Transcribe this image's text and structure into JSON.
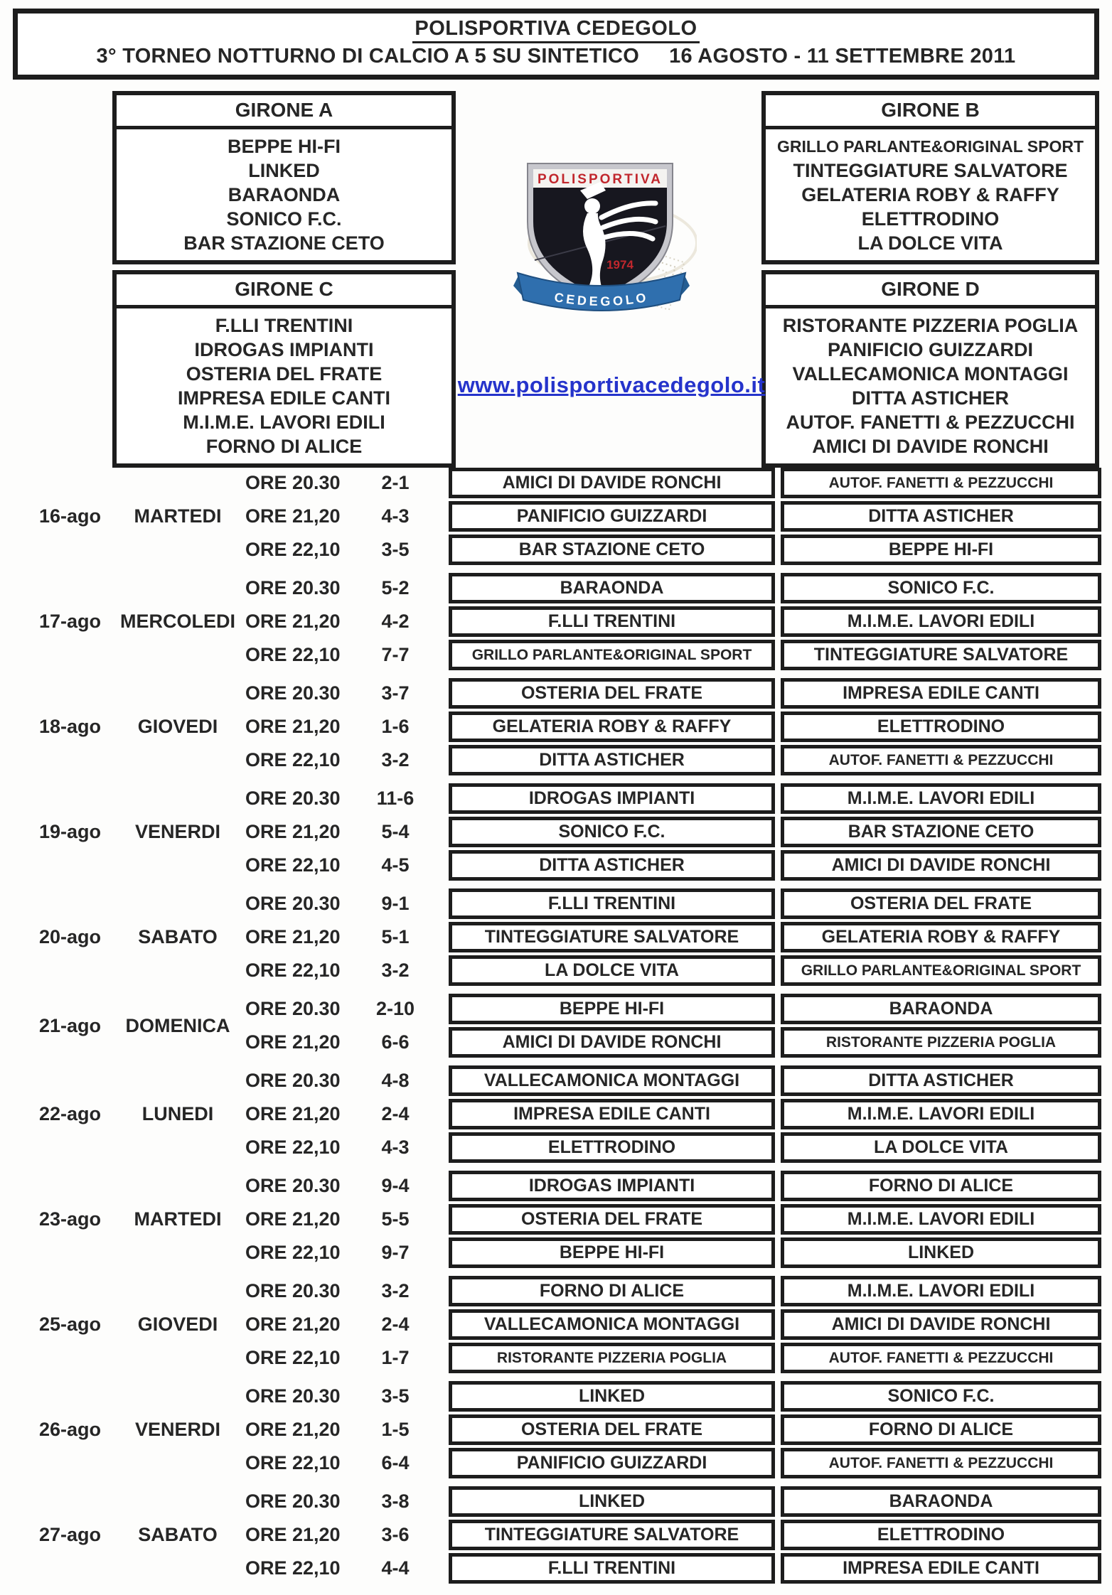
{
  "header": {
    "title": "POLISPORTIVA CEDEGOLO",
    "subtitle": "3° TORNEO NOTTURNO DI CALCIO A 5 SU SINTETICO",
    "dates": "16 AGOSTO - 11 SETTEMBRE 2011"
  },
  "logo": {
    "club": "POLISPORTIVA",
    "year": "1974",
    "town": "CEDEGOLO"
  },
  "website": "www.polisportivacedegolo.it",
  "groups": [
    {
      "name": "GIRONE A",
      "teams": [
        "BEPPE HI-FI",
        "LINKED",
        "BARAONDA",
        "SONICO F.C.",
        "BAR STAZIONE CETO"
      ]
    },
    {
      "name": "GIRONE B",
      "teams": [
        "GRILLO PARLANTE&ORIGINAL SPORT",
        "TINTEGGIATURE SALVATORE",
        "GELATERIA ROBY & RAFFY",
        "ELETTRODINO",
        "LA DOLCE VITA"
      ]
    },
    {
      "name": "GIRONE C",
      "teams": [
        "F.LLI TRENTINI",
        "IDROGAS IMPIANTI",
        "OSTERIA DEL FRATE",
        "IMPRESA EDILE CANTI",
        "M.I.M.E. LAVORI EDILI",
        "FORNO DI ALICE"
      ]
    },
    {
      "name": "GIRONE D",
      "teams": [
        "RISTORANTE PIZZERIA POGLIA",
        "PANIFICIO GUIZZARDI",
        "VALLECAMONICA MONTAGGI",
        "DITTA ASTICHER",
        "AUTOF. FANETTI & PEZZUCCHI",
        "AMICI DI DAVIDE RONCHI"
      ]
    }
  ],
  "schedule": [
    {
      "date": "16-ago",
      "day": "MARTEDI",
      "matches": [
        {
          "time": "ORE 20.30",
          "score": "2-1",
          "home": "AMICI DI DAVIDE RONCHI",
          "away": "AUTOF. FANETTI & PEZZUCCHI"
        },
        {
          "time": "ORE 21,20",
          "score": "4-3",
          "home": "PANIFICIO GUIZZARDI",
          "away": "DITTA ASTICHER"
        },
        {
          "time": "ORE 22,10",
          "score": "3-5",
          "home": "BAR STAZIONE CETO",
          "away": "BEPPE HI-FI"
        }
      ]
    },
    {
      "date": "17-ago",
      "day": "MERCOLEDI",
      "matches": [
        {
          "time": "ORE 20.30",
          "score": "5-2",
          "home": "BARAONDA",
          "away": "SONICO F.C."
        },
        {
          "time": "ORE 21,20",
          "score": "4-2",
          "home": "F.LLI TRENTINI",
          "away": "M.I.M.E. LAVORI EDILI"
        },
        {
          "time": "ORE 22,10",
          "score": "7-7",
          "home": "GRILLO PARLANTE&ORIGINAL SPORT",
          "away": "TINTEGGIATURE SALVATORE"
        }
      ]
    },
    {
      "date": "18-ago",
      "day": "GIOVEDI",
      "matches": [
        {
          "time": "ORE 20.30",
          "score": "3-7",
          "home": "OSTERIA DEL FRATE",
          "away": "IMPRESA EDILE CANTI"
        },
        {
          "time": "ORE 21,20",
          "score": "1-6",
          "home": "GELATERIA ROBY & RAFFY",
          "away": "ELETTRODINO"
        },
        {
          "time": "ORE 22,10",
          "score": "3-2",
          "home": "DITTA ASTICHER",
          "away": "AUTOF. FANETTI & PEZZUCCHI"
        }
      ]
    },
    {
      "date": "19-ago",
      "day": "VENERDI",
      "matches": [
        {
          "time": "ORE 20.30",
          "score": "11-6",
          "home": "IDROGAS IMPIANTI",
          "away": "M.I.M.E. LAVORI EDILI"
        },
        {
          "time": "ORE 21,20",
          "score": "5-4",
          "home": "SONICO F.C.",
          "away": "BAR STAZIONE CETO"
        },
        {
          "time": "ORE 22,10",
          "score": "4-5",
          "home": "DITTA ASTICHER",
          "away": "AMICI DI DAVIDE RONCHI"
        }
      ]
    },
    {
      "date": "20-ago",
      "day": "SABATO",
      "matches": [
        {
          "time": "ORE 20.30",
          "score": "9-1",
          "home": "F.LLI TRENTINI",
          "away": "OSTERIA DEL FRATE"
        },
        {
          "time": "ORE 21,20",
          "score": "5-1",
          "home": "TINTEGGIATURE SALVATORE",
          "away": "GELATERIA ROBY & RAFFY"
        },
        {
          "time": "ORE 22,10",
          "score": "3-2",
          "home": "LA DOLCE VITA",
          "away": "GRILLO PARLANTE&ORIGINAL SPORT"
        }
      ]
    },
    {
      "date": "21-ago",
      "day": "DOMENICA",
      "matches": [
        {
          "time": "ORE 20.30",
          "score": "2-10",
          "home": "BEPPE HI-FI",
          "away": "BARAONDA"
        },
        {
          "time": "ORE 21,20",
          "score": "6-6",
          "home": "AMICI DI DAVIDE RONCHI",
          "away": "RISTORANTE PIZZERIA POGLIA"
        }
      ]
    },
    {
      "date": "22-ago",
      "day": "LUNEDI",
      "matches": [
        {
          "time": "ORE 20.30",
          "score": "4-8",
          "home": "VALLECAMONICA MONTAGGI",
          "away": "DITTA ASTICHER"
        },
        {
          "time": "ORE 21,20",
          "score": "2-4",
          "home": "IMPRESA EDILE CANTI",
          "away": "M.I.M.E. LAVORI EDILI"
        },
        {
          "time": "ORE 22,10",
          "score": "4-3",
          "home": "ELETTRODINO",
          "away": "LA DOLCE VITA"
        }
      ]
    },
    {
      "date": "23-ago",
      "day": "MARTEDI",
      "matches": [
        {
          "time": "ORE 20.30",
          "score": "9-4",
          "home": "IDROGAS IMPIANTI",
          "away": "FORNO DI ALICE"
        },
        {
          "time": "ORE 21,20",
          "score": "5-5",
          "home": "OSTERIA DEL FRATE",
          "away": "M.I.M.E. LAVORI EDILI"
        },
        {
          "time": "ORE 22,10",
          "score": "9-7",
          "home": "BEPPE HI-FI",
          "away": "LINKED"
        }
      ]
    },
    {
      "date": "25-ago",
      "day": "GIOVEDI",
      "matches": [
        {
          "time": "ORE 20.30",
          "score": "3-2",
          "home": "FORNO DI ALICE",
          "away": "M.I.M.E. LAVORI EDILI"
        },
        {
          "time": "ORE 21,20",
          "score": "2-4",
          "home": "VALLECAMONICA MONTAGGI",
          "away": "AMICI DI DAVIDE RONCHI"
        },
        {
          "time": "ORE 22,10",
          "score": "1-7",
          "home": "RISTORANTE PIZZERIA POGLIA",
          "away": "AUTOF. FANETTI & PEZZUCCHI"
        }
      ]
    },
    {
      "date": "26-ago",
      "day": "VENERDI",
      "matches": [
        {
          "time": "ORE 20.30",
          "score": "3-5",
          "home": "LINKED",
          "away": "SONICO F.C."
        },
        {
          "time": "ORE 21,20",
          "score": "1-5",
          "home": "OSTERIA DEL FRATE",
          "away": "FORNO DI ALICE"
        },
        {
          "time": "ORE 22,10",
          "score": "6-4",
          "home": "PANIFICIO GUIZZARDI",
          "away": "AUTOF. FANETTI & PEZZUCCHI"
        }
      ]
    },
    {
      "date": "27-ago",
      "day": "SABATO",
      "matches": [
        {
          "time": "ORE 20.30",
          "score": "3-8",
          "home": "LINKED",
          "away": "BARAONDA"
        },
        {
          "time": "ORE 21,20",
          "score": "3-6",
          "home": "TINTEGGIATURE SALVATORE",
          "away": "ELETTRODINO"
        },
        {
          "time": "ORE 22,10",
          "score": "4-4",
          "home": "F.LLI TRENTINI",
          "away": "IMPRESA EDILE CANTI"
        }
      ]
    }
  ]
}
